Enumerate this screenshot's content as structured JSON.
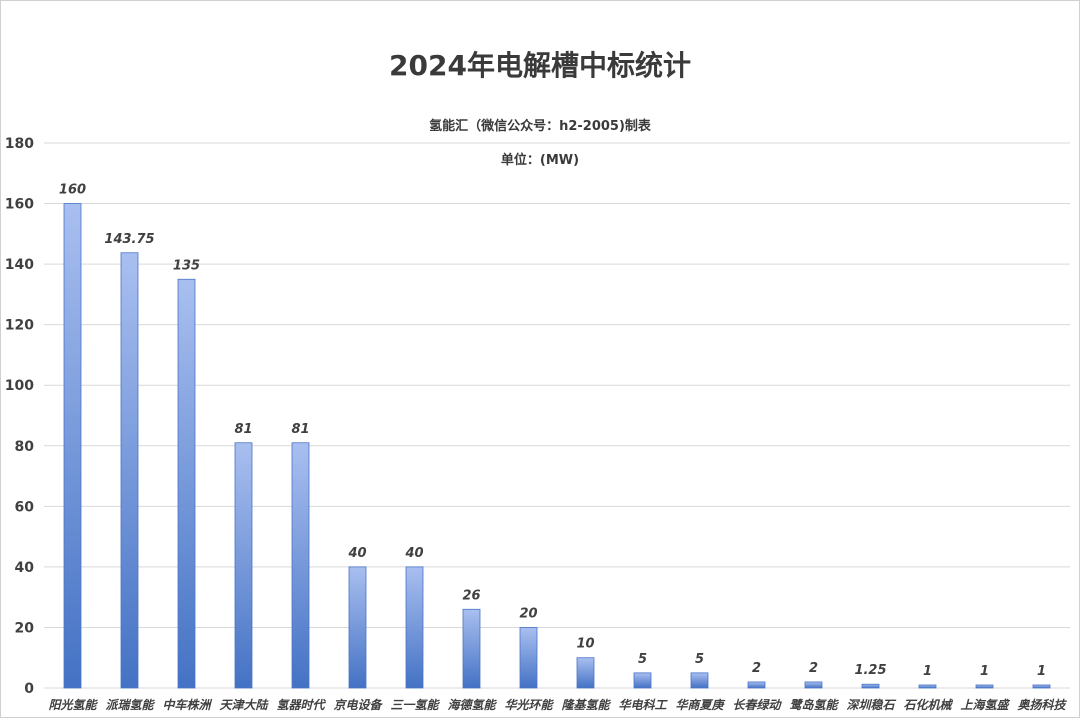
{
  "chart_data": {
    "type": "bar",
    "title": "2024年电解槽中标统计",
    "subtitle": "氢能汇（微信公众号：h2-2005)制表",
    "unit_label": "单位：(MW)",
    "xlabel": "",
    "ylabel": "",
    "ylim": [
      0,
      180
    ],
    "yticks": [
      0,
      20,
      40,
      60,
      80,
      100,
      120,
      140,
      160,
      180
    ],
    "grid": true,
    "legend": "none",
    "categories": [
      "阳光氢能",
      "派瑞氢能",
      "中车株洲",
      "天津大陆",
      "氢器时代",
      "京电设备",
      "三一氢能",
      "海德氢能",
      "华光环能",
      "隆基氢能",
      "华电科工",
      "华商夏庚",
      "长春绿动",
      "鹭岛氢能",
      "深圳稳石",
      "石化机械",
      "上海氢盛",
      "奥扬科技"
    ],
    "values": [
      160,
      143.75,
      135,
      81,
      81,
      40,
      40,
      26,
      20,
      10,
      5,
      5,
      2,
      2,
      1.25,
      1,
      1,
      1
    ],
    "data_labels": [
      "160",
      "143.75",
      "135",
      "81",
      "81",
      "40",
      "40",
      "26",
      "20",
      "10",
      "5",
      "5",
      "2",
      "2",
      "1.25",
      "1",
      "1",
      "1"
    ],
    "colors": {
      "bar_top": "#a9bff0",
      "bar_bottom": "#4472c4",
      "bar_edge": "#4a74c8",
      "grid": "#d9d9d9",
      "text": "#404040"
    }
  }
}
